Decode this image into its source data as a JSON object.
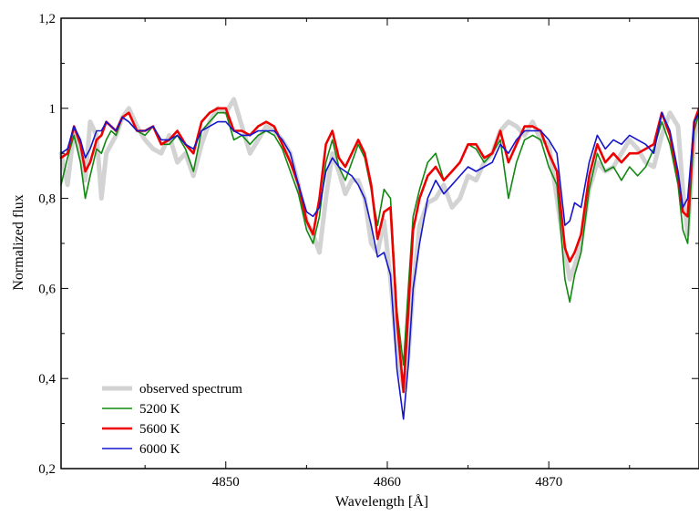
{
  "chart_data": {
    "type": "line",
    "title": "",
    "xlabel": "Wavelength [Å]",
    "ylabel": "Normalized flux",
    "xlim": [
      4839.8,
      4879.3
    ],
    "ylim": [
      0.2,
      1.2
    ],
    "x_ticks": [
      "4850",
      "4860",
      "4870"
    ],
    "y_ticks": [
      "0,2",
      "0,4",
      "0,6",
      "0,8",
      "1",
      "1,2"
    ],
    "legend_position": "bottom-left",
    "series": [
      {
        "name": "observed spectrum",
        "color": "#d3d3d3",
        "x": [
          4839.8,
          4840.2,
          4840.6,
          4841.0,
          4841.3,
          4841.6,
          4842.0,
          4842.3,
          4842.6,
          4842.9,
          4843.2,
          4843.6,
          4844.0,
          4844.5,
          4845.0,
          4845.5,
          4846.0,
          4846.5,
          4847.0,
          4847.5,
          4848.0,
          4848.5,
          4849.0,
          4849.5,
          4850.0,
          4850.5,
          4851.0,
          4851.5,
          4852.0,
          4852.5,
          4853.0,
          4853.5,
          4854.0,
          4854.5,
          4855.0,
          4855.4,
          4855.8,
          4856.2,
          4856.6,
          4857.0,
          4857.4,
          4857.8,
          4858.2,
          4858.6,
          4859.0,
          4859.4,
          4859.8,
          4860.2,
          4860.6,
          4861.0,
          4861.3,
          4861.6,
          4862.0,
          4862.5,
          4863.0,
          4863.5,
          4864.0,
          4864.5,
          4865.0,
          4865.5,
          4866.0,
          4866.5,
          4867.0,
          4867.5,
          4868.0,
          4868.5,
          4869.0,
          4869.5,
          4870.0,
          4870.5,
          4871.0,
          4871.3,
          4871.6,
          4872.0,
          4872.5,
          4873.0,
          4873.5,
          4874.0,
          4874.5,
          4875.0,
          4875.5,
          4876.0,
          4876.5,
          4877.0,
          4877.5,
          4878.0,
          4878.3,
          4878.6,
          4879.0,
          4879.3
        ],
        "y": [
          0.9,
          0.83,
          0.95,
          0.9,
          0.84,
          0.97,
          0.94,
          0.8,
          0.9,
          0.92,
          0.94,
          0.98,
          1.0,
          0.96,
          0.93,
          0.91,
          0.9,
          0.94,
          0.88,
          0.9,
          0.85,
          0.92,
          0.97,
          1.0,
          0.99,
          1.02,
          0.96,
          0.9,
          0.93,
          0.96,
          0.95,
          0.93,
          0.9,
          0.83,
          0.75,
          0.72,
          0.68,
          0.8,
          0.9,
          0.86,
          0.81,
          0.84,
          0.84,
          0.8,
          0.7,
          0.68,
          0.75,
          0.62,
          0.46,
          0.38,
          0.45,
          0.6,
          0.74,
          0.79,
          0.8,
          0.83,
          0.78,
          0.8,
          0.85,
          0.84,
          0.88,
          0.9,
          0.95,
          0.97,
          0.96,
          0.94,
          0.97,
          0.93,
          0.92,
          0.8,
          0.68,
          0.62,
          0.65,
          0.7,
          0.82,
          0.88,
          0.86,
          0.87,
          0.9,
          0.93,
          0.91,
          0.88,
          0.87,
          0.94,
          0.99,
          0.96,
          0.82,
          0.72,
          0.93,
          0.99
        ]
      },
      {
        "name": "5200 K",
        "color": "#118811",
        "x": [
          4839.8,
          4840.2,
          4840.6,
          4841.0,
          4841.3,
          4841.6,
          4842.0,
          4842.3,
          4842.6,
          4842.9,
          4843.2,
          4843.6,
          4844.0,
          4844.5,
          4845.0,
          4845.5,
          4846.0,
          4846.5,
          4847.0,
          4847.5,
          4848.0,
          4848.5,
          4849.0,
          4849.5,
          4850.0,
          4850.5,
          4851.0,
          4851.5,
          4852.0,
          4852.5,
          4853.0,
          4853.5,
          4854.0,
          4854.5,
          4855.0,
          4855.4,
          4855.8,
          4856.2,
          4856.6,
          4857.0,
          4857.4,
          4857.8,
          4858.2,
          4858.6,
          4859.0,
          4859.4,
          4859.8,
          4860.2,
          4860.6,
          4861.0,
          4861.3,
          4861.6,
          4862.0,
          4862.5,
          4863.0,
          4863.5,
          4864.0,
          4864.5,
          4865.0,
          4865.5,
          4866.0,
          4866.5,
          4867.0,
          4867.5,
          4868.0,
          4868.5,
          4869.0,
          4869.5,
          4870.0,
          4870.5,
          4871.0,
          4871.3,
          4871.6,
          4872.0,
          4872.5,
          4873.0,
          4873.5,
          4874.0,
          4874.5,
          4875.0,
          4875.5,
          4876.0,
          4876.5,
          4877.0,
          4877.5,
          4878.0,
          4878.3,
          4878.6,
          4879.0,
          4879.3
        ],
        "y": [
          0.83,
          0.89,
          0.94,
          0.88,
          0.8,
          0.85,
          0.91,
          0.9,
          0.93,
          0.95,
          0.94,
          0.98,
          0.97,
          0.95,
          0.94,
          0.96,
          0.92,
          0.92,
          0.94,
          0.91,
          0.86,
          0.95,
          0.97,
          0.99,
          0.99,
          0.93,
          0.94,
          0.92,
          0.94,
          0.95,
          0.94,
          0.91,
          0.86,
          0.81,
          0.73,
          0.7,
          0.76,
          0.88,
          0.93,
          0.87,
          0.84,
          0.88,
          0.92,
          0.89,
          0.82,
          0.74,
          0.82,
          0.8,
          0.55,
          0.43,
          0.6,
          0.76,
          0.82,
          0.88,
          0.9,
          0.84,
          0.86,
          0.88,
          0.92,
          0.91,
          0.88,
          0.9,
          0.93,
          0.8,
          0.88,
          0.93,
          0.94,
          0.93,
          0.87,
          0.83,
          0.62,
          0.57,
          0.63,
          0.68,
          0.82,
          0.9,
          0.86,
          0.87,
          0.84,
          0.87,
          0.85,
          0.87,
          0.91,
          0.97,
          0.92,
          0.83,
          0.73,
          0.7,
          0.95,
          0.99
        ]
      },
      {
        "name": "5600 K",
        "color": "#ee0000",
        "x": [
          4839.8,
          4840.2,
          4840.6,
          4841.0,
          4841.3,
          4841.6,
          4842.0,
          4842.3,
          4842.6,
          4842.9,
          4843.2,
          4843.6,
          4844.0,
          4844.5,
          4845.0,
          4845.5,
          4846.0,
          4846.5,
          4847.0,
          4847.5,
          4848.0,
          4848.5,
          4849.0,
          4849.5,
          4850.0,
          4850.5,
          4851.0,
          4851.5,
          4852.0,
          4852.5,
          4853.0,
          4853.5,
          4854.0,
          4854.5,
          4855.0,
          4855.4,
          4855.8,
          4856.2,
          4856.6,
          4857.0,
          4857.4,
          4857.8,
          4858.2,
          4858.6,
          4859.0,
          4859.4,
          4859.8,
          4860.2,
          4860.6,
          4861.0,
          4861.3,
          4861.6,
          4862.0,
          4862.5,
          4863.0,
          4863.5,
          4864.0,
          4864.5,
          4865.0,
          4865.5,
          4866.0,
          4866.5,
          4867.0,
          4867.5,
          4868.0,
          4868.5,
          4869.0,
          4869.5,
          4870.0,
          4870.5,
          4871.0,
          4871.3,
          4871.6,
          4872.0,
          4872.5,
          4873.0,
          4873.5,
          4874.0,
          4874.5,
          4875.0,
          4875.5,
          4876.0,
          4876.5,
          4877.0,
          4877.5,
          4878.0,
          4878.3,
          4878.6,
          4879.0,
          4879.3
        ],
        "y": [
          0.89,
          0.9,
          0.96,
          0.92,
          0.86,
          0.88,
          0.93,
          0.94,
          0.97,
          0.96,
          0.95,
          0.98,
          0.99,
          0.95,
          0.95,
          0.96,
          0.92,
          0.93,
          0.95,
          0.92,
          0.9,
          0.97,
          0.99,
          1.0,
          1.0,
          0.95,
          0.95,
          0.94,
          0.96,
          0.97,
          0.96,
          0.92,
          0.88,
          0.83,
          0.75,
          0.72,
          0.8,
          0.92,
          0.95,
          0.89,
          0.87,
          0.9,
          0.93,
          0.9,
          0.83,
          0.71,
          0.77,
          0.78,
          0.53,
          0.37,
          0.55,
          0.73,
          0.8,
          0.85,
          0.87,
          0.84,
          0.86,
          0.88,
          0.92,
          0.92,
          0.89,
          0.9,
          0.95,
          0.88,
          0.92,
          0.96,
          0.96,
          0.95,
          0.9,
          0.86,
          0.69,
          0.66,
          0.68,
          0.72,
          0.85,
          0.92,
          0.88,
          0.9,
          0.88,
          0.9,
          0.9,
          0.91,
          0.92,
          0.99,
          0.94,
          0.85,
          0.77,
          0.76,
          0.97,
          1.0
        ]
      },
      {
        "name": "6000 K",
        "color": "#1515cc",
        "x": [
          4839.8,
          4840.2,
          4840.6,
          4841.0,
          4841.3,
          4841.6,
          4842.0,
          4842.3,
          4842.6,
          4842.9,
          4843.2,
          4843.6,
          4844.0,
          4844.5,
          4845.0,
          4845.5,
          4846.0,
          4846.5,
          4847.0,
          4847.5,
          4848.0,
          4848.5,
          4849.0,
          4849.5,
          4850.0,
          4850.5,
          4851.0,
          4851.5,
          4852.0,
          4852.5,
          4853.0,
          4853.5,
          4854.0,
          4854.5,
          4855.0,
          4855.4,
          4855.8,
          4856.2,
          4856.6,
          4857.0,
          4857.4,
          4857.8,
          4858.2,
          4858.6,
          4859.0,
          4859.4,
          4859.8,
          4860.2,
          4860.6,
          4861.0,
          4861.3,
          4861.6,
          4862.0,
          4862.5,
          4863.0,
          4863.5,
          4864.0,
          4864.5,
          4865.0,
          4865.5,
          4866.0,
          4866.5,
          4867.0,
          4867.5,
          4868.0,
          4868.5,
          4869.0,
          4869.5,
          4870.0,
          4870.5,
          4871.0,
          4871.3,
          4871.6,
          4872.0,
          4872.5,
          4873.0,
          4873.5,
          4874.0,
          4874.5,
          4875.0,
          4875.5,
          4876.0,
          4876.5,
          4877.0,
          4877.5,
          4878.0,
          4878.3,
          4878.6,
          4879.0,
          4879.3
        ],
        "y": [
          0.9,
          0.91,
          0.96,
          0.93,
          0.89,
          0.91,
          0.95,
          0.95,
          0.97,
          0.96,
          0.95,
          0.98,
          0.97,
          0.95,
          0.95,
          0.96,
          0.93,
          0.93,
          0.94,
          0.92,
          0.91,
          0.95,
          0.96,
          0.97,
          0.97,
          0.95,
          0.94,
          0.94,
          0.95,
          0.95,
          0.95,
          0.93,
          0.9,
          0.83,
          0.77,
          0.76,
          0.78,
          0.86,
          0.89,
          0.87,
          0.86,
          0.85,
          0.83,
          0.8,
          0.74,
          0.67,
          0.68,
          0.63,
          0.42,
          0.31,
          0.43,
          0.6,
          0.7,
          0.8,
          0.84,
          0.81,
          0.83,
          0.85,
          0.87,
          0.86,
          0.87,
          0.88,
          0.92,
          0.9,
          0.93,
          0.95,
          0.95,
          0.95,
          0.93,
          0.9,
          0.74,
          0.75,
          0.79,
          0.78,
          0.88,
          0.94,
          0.91,
          0.93,
          0.92,
          0.94,
          0.93,
          0.92,
          0.9,
          0.99,
          0.95,
          0.86,
          0.78,
          0.8,
          0.97,
          0.99
        ]
      }
    ]
  }
}
